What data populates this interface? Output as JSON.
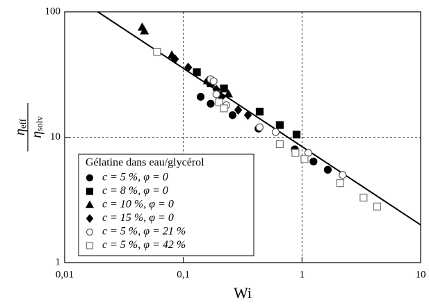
{
  "chart_data": {
    "type": "scatter",
    "xlabel": "Wi",
    "ylabel": {
      "top": "η",
      "top_sub": "eff",
      "bottom": "η",
      "bottom_sub": "solv"
    },
    "xscale": "log",
    "yscale": "log",
    "xlim": [
      0.01,
      10
    ],
    "ylim": [
      1,
      100
    ],
    "xticks": [
      {
        "value": 0.01,
        "label": "0,01"
      },
      {
        "value": 0.1,
        "label": "0,1"
      },
      1,
      10
    ],
    "yticks": [
      1,
      10,
      100
    ],
    "grid": true,
    "legend_title": "Gélatine dans eau/glycérol",
    "legend_position": "lower-left",
    "fit_line": {
      "x": [
        0.019,
        10
      ],
      "y": [
        100,
        2
      ],
      "color": "#000000"
    },
    "series": [
      {
        "name": "c = 5 %, φ = 0",
        "marker": "circle",
        "filled": true,
        "color": "#000000",
        "x": [
          0.14,
          0.17,
          0.26,
          0.43,
          0.87,
          1.25,
          1.65
        ],
        "values": [
          21,
          18.5,
          15,
          11.7,
          8,
          6.4,
          5.5
        ]
      },
      {
        "name": "c = 8 %, φ = 0",
        "marker": "square",
        "filled": true,
        "color": "#000000",
        "x": [
          0.13,
          0.17,
          0.22,
          0.44,
          0.65,
          0.9
        ],
        "values": [
          33,
          27,
          24.5,
          16,
          12.5,
          10.5
        ]
      },
      {
        "name": "c = 10 %, φ = 0",
        "marker": "triangle",
        "filled": true,
        "color": "#000000",
        "x": [
          0.045,
          0.047,
          0.08,
          0.16,
          0.24
        ],
        "values": [
          75,
          70,
          45,
          28,
          22
        ]
      },
      {
        "name": "c = 15 %, φ = 0",
        "marker": "diamond",
        "filled": true,
        "color": "#000000",
        "x": [
          0.085,
          0.11,
          0.16,
          0.19,
          0.21,
          0.29,
          0.35
        ],
        "values": [
          42,
          36,
          28,
          24,
          21,
          16.5,
          15
        ]
      },
      {
        "name": "c = 5 %, φ = 21 %",
        "marker": "circle",
        "filled": false,
        "color": "#555555",
        "x": [
          0.17,
          0.18,
          0.19,
          0.23,
          0.44,
          0.6,
          1.13,
          2.2
        ],
        "values": [
          29,
          28,
          22,
          18,
          12,
          11,
          7.5,
          5
        ]
      },
      {
        "name": "c = 5 %, φ = 42 %",
        "marker": "square",
        "filled": false,
        "color": "#777777",
        "x": [
          0.06,
          0.2,
          0.22,
          0.65,
          0.88,
          1.05,
          2.1,
          3.3,
          4.3
        ],
        "values": [
          48,
          19,
          17,
          8.8,
          7.5,
          6.7,
          4.3,
          3.3,
          2.8
        ]
      }
    ]
  }
}
